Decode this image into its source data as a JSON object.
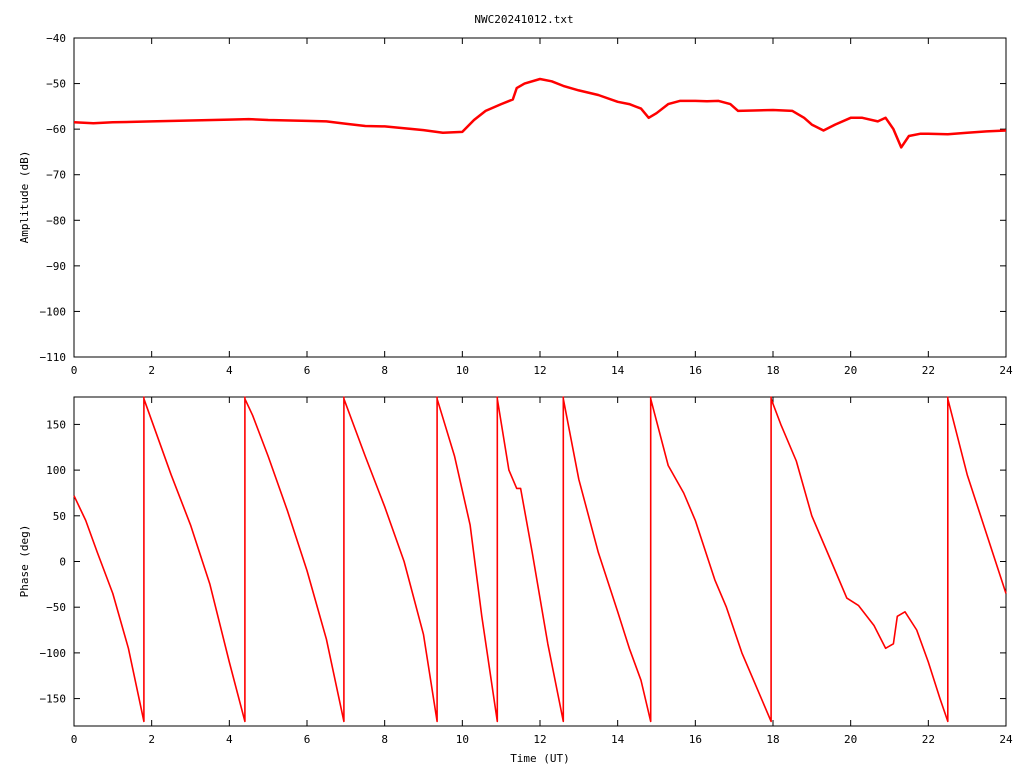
{
  "title": "NWC20241012.txt",
  "colors": {
    "series": "#ff0000",
    "axis": "#000000",
    "background": "#ffffff"
  },
  "chart_data": [
    {
      "type": "line",
      "title": "NWC20241012.txt",
      "xlabel": "",
      "ylabel": "Amplitude (dB)",
      "xlim": [
        0,
        24
      ],
      "ylim": [
        -110,
        -40
      ],
      "xticks": [
        0,
        2,
        4,
        6,
        8,
        10,
        12,
        14,
        16,
        18,
        20,
        22,
        24
      ],
      "yticks": [
        -110,
        -100,
        -90,
        -80,
        -70,
        -60,
        -50,
        -40
      ],
      "xtick_labels": [
        "0",
        "2",
        "4",
        "6",
        "8",
        "10",
        "12",
        "14",
        "16",
        "18",
        "20",
        "22",
        "24"
      ],
      "ytick_labels": [
        "−110",
        "−100",
        "−90",
        "−80",
        "−70",
        "−60",
        "−50",
        "−40"
      ],
      "grid": false,
      "series": [
        {
          "x": [
            0,
            0.5,
            1,
            2,
            3,
            4,
            4.5,
            5,
            6,
            6.5,
            7,
            7.5,
            8,
            8.5,
            9,
            9.5,
            10,
            10.3,
            10.6,
            11,
            11.3,
            11.4,
            11.6,
            12,
            12.3,
            12.6,
            13,
            13.5,
            14,
            14.3,
            14.6,
            14.8,
            15,
            15.3,
            15.6,
            16,
            16.3,
            16.6,
            16.9,
            17.1,
            17.5,
            18,
            18.5,
            18.8,
            19,
            19.3,
            19.6,
            20,
            20.3,
            20.7,
            20.9,
            21.1,
            21.3,
            21.5,
            21.8,
            22,
            22.5,
            23,
            23.5,
            24
          ],
          "y": [
            -58.5,
            -58.7,
            -58.5,
            -58.3,
            -58.1,
            -57.9,
            -57.8,
            -58,
            -58.2,
            -58.3,
            -58.8,
            -59.3,
            -59.4,
            -59.8,
            -60.2,
            -60.8,
            -60.6,
            -58,
            -56,
            -54.5,
            -53.5,
            -51,
            -50,
            -49,
            -49.5,
            -50.5,
            -51.5,
            -52.5,
            -54,
            -54.5,
            -55.5,
            -57.5,
            -56.5,
            -54.5,
            -53.8,
            -53.8,
            -53.9,
            -53.8,
            -54.5,
            -56,
            -55.9,
            -55.8,
            -56,
            -57.5,
            -59,
            -60.3,
            -59,
            -57.5,
            -57.5,
            -58.3,
            -57.5,
            -60,
            -64,
            -61.5,
            -61,
            -61,
            -61.1,
            -60.8,
            -60.5,
            -60.3
          ]
        }
      ]
    },
    {
      "type": "line",
      "title": "",
      "xlabel": "Time (UT)",
      "ylabel": "Phase (deg)",
      "xlim": [
        0,
        24
      ],
      "ylim": [
        -180,
        180
      ],
      "xticks": [
        0,
        2,
        4,
        6,
        8,
        10,
        12,
        14,
        16,
        18,
        20,
        22,
        24
      ],
      "yticks": [
        -150,
        -100,
        -50,
        0,
        50,
        100,
        150
      ],
      "xtick_labels": [
        "0",
        "2",
        "4",
        "6",
        "8",
        "10",
        "12",
        "14",
        "16",
        "18",
        "20",
        "22",
        "24"
      ],
      "ytick_labels": [
        "−150",
        "−100",
        "−50",
        "0",
        "50",
        "100",
        "150"
      ],
      "grid": false,
      "series": [
        {
          "x": [
            0,
            0.3,
            0.6,
            1.0,
            1.4,
            1.8,
            1.8,
            1.8,
            2.5,
            3.0,
            3.5,
            4.0,
            4.4,
            4.4,
            4.4,
            4.6,
            5.0,
            5.5,
            6.0,
            6.5,
            6.95,
            6.95,
            6.95,
            7.5,
            8.0,
            8.5,
            9.0,
            9.35,
            9.35,
            9.35,
            9.8,
            10.2,
            10.5,
            10.9,
            10.9,
            10.9,
            11.2,
            11.4,
            11.5,
            11.8,
            12.2,
            12.6,
            12.6,
            12.6,
            13.0,
            13.5,
            14.0,
            14.3,
            14.6,
            14.85,
            14.85,
            14.85,
            15.3,
            15.7,
            16.0,
            16.5,
            16.8,
            17.2,
            17.5,
            17.95,
            17.95,
            17.95,
            18.2,
            18.6,
            19.0,
            19.5,
            19.9,
            20.2,
            20.6,
            20.9,
            21.1,
            21.2,
            21.4,
            21.7,
            22.0,
            22.3,
            22.5,
            22.5,
            22.5,
            23.0,
            23.5,
            24.0
          ],
          "y": [
            72,
            45,
            10,
            -35,
            -95,
            -175,
            180,
            178,
            95,
            40,
            -25,
            -110,
            -175,
            180,
            178,
            160,
            115,
            55,
            -10,
            -85,
            -175,
            180,
            178,
            115,
            60,
            0,
            -80,
            -175,
            180,
            178,
            115,
            40,
            -60,
            -175,
            180,
            178,
            100,
            80,
            80,
            10,
            -90,
            -175,
            180,
            178,
            90,
            10,
            -55,
            -95,
            -130,
            -175,
            180,
            178,
            105,
            75,
            45,
            -20,
            -50,
            -100,
            -130,
            -175,
            180,
            178,
            150,
            110,
            50,
            0,
            -40,
            -48,
            -70,
            -95,
            -90,
            -60,
            -55,
            -75,
            -110,
            -150,
            -175,
            180,
            178,
            95,
            30,
            -35
          ]
        }
      ]
    }
  ]
}
